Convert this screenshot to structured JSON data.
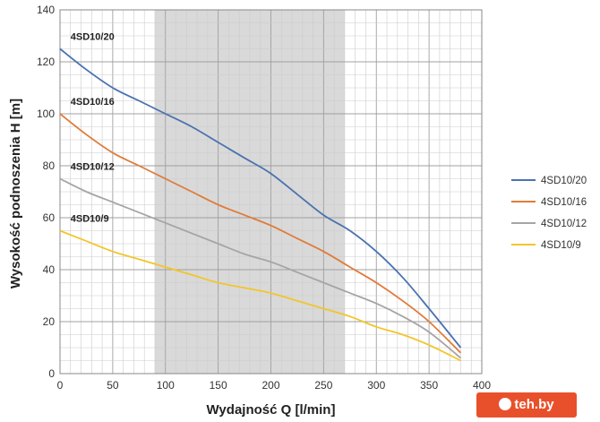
{
  "chart_data": {
    "type": "line",
    "title": "",
    "xlabel": "Wydajność Q [l/min]",
    "ylabel": "Wysokość podnoszenia H [m]",
    "xlim": [
      0,
      400
    ],
    "ylim": [
      0,
      140
    ],
    "x_ticks": [
      0,
      50,
      100,
      150,
      200,
      250,
      300,
      350,
      400
    ],
    "y_ticks": [
      0,
      20,
      40,
      60,
      80,
      100,
      120,
      140
    ],
    "grid": true,
    "highlight_range": [
      90,
      270
    ],
    "legend_position": "right",
    "series": [
      {
        "name": "4SD10/20",
        "color": "#4a72b0",
        "label": "4SD10/20",
        "x": [
          0,
          25,
          50,
          75,
          100,
          125,
          150,
          175,
          200,
          225,
          250,
          275,
          300,
          325,
          350,
          380
        ],
        "y": [
          125,
          117,
          110,
          105,
          100,
          95,
          89,
          83,
          77,
          69,
          61,
          55,
          47,
          37,
          25,
          10
        ]
      },
      {
        "name": "4SD10/16",
        "color": "#e07b39",
        "label": "4SD10/16",
        "x": [
          0,
          25,
          50,
          75,
          100,
          125,
          150,
          175,
          200,
          225,
          250,
          275,
          300,
          325,
          350,
          380
        ],
        "y": [
          100,
          92,
          85,
          80,
          75,
          70,
          65,
          61,
          57,
          52,
          47,
          41,
          35,
          28,
          20,
          8
        ]
      },
      {
        "name": "4SD10/12",
        "color": "#a5a5a5",
        "label": "4SD10/12",
        "x": [
          0,
          25,
          50,
          75,
          100,
          125,
          150,
          175,
          200,
          225,
          250,
          275,
          300,
          325,
          350,
          380
        ],
        "y": [
          75,
          70,
          66,
          62,
          58,
          54,
          50,
          46,
          43,
          39,
          35,
          31,
          27,
          22,
          16,
          6
        ]
      },
      {
        "name": "4SD10/9",
        "color": "#f2c52a",
        "label": "4SD10/9",
        "x": [
          0,
          25,
          50,
          75,
          100,
          125,
          150,
          175,
          200,
          225,
          250,
          275,
          300,
          325,
          350,
          380
        ],
        "y": [
          55,
          51,
          47,
          44,
          41,
          38,
          35,
          33,
          31,
          28,
          25,
          22,
          18,
          15,
          11,
          5
        ]
      }
    ]
  },
  "watermark": {
    "text": "teh.by"
  }
}
